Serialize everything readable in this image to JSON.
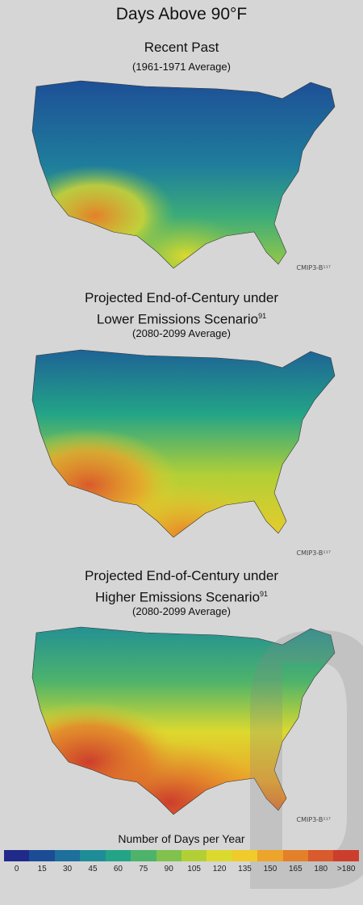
{
  "title": "Days Above 90°F",
  "panels": [
    {
      "title": "Recent Past",
      "sub": "(1961-1971 Average)",
      "credit": "CMIP3-B¹¹⁷"
    },
    {
      "title_line1": "Projected End-of-Century under",
      "title_line2": "Lower Emissions Scenario",
      "sup": "91",
      "sub": "(2080-2099 Average)",
      "credit": "CMIP3-B¹¹⁷"
    },
    {
      "title_line1": "Projected End-of-Century under",
      "title_line2": "Higher Emissions Scenario",
      "sup": "91",
      "sub": "(2080-2099 Average)",
      "credit": "CMIP3-B¹¹⁷"
    }
  ],
  "legend": {
    "title": "Number of Days per Year",
    "ticks": [
      "0",
      "15",
      "30",
      "45",
      "60",
      "75",
      "90",
      "105",
      "120",
      "135",
      "150",
      "165",
      "180",
      ">180"
    ],
    "colors": [
      "#1f2a8a",
      "#1d4c96",
      "#1d6f9c",
      "#1f8d98",
      "#23a487",
      "#4db36b",
      "#80c24c",
      "#b2cf36",
      "#dcd92e",
      "#f0cb2a",
      "#eca42a",
      "#e4802a",
      "#d95a2c",
      "#cc3e2c"
    ]
  }
}
